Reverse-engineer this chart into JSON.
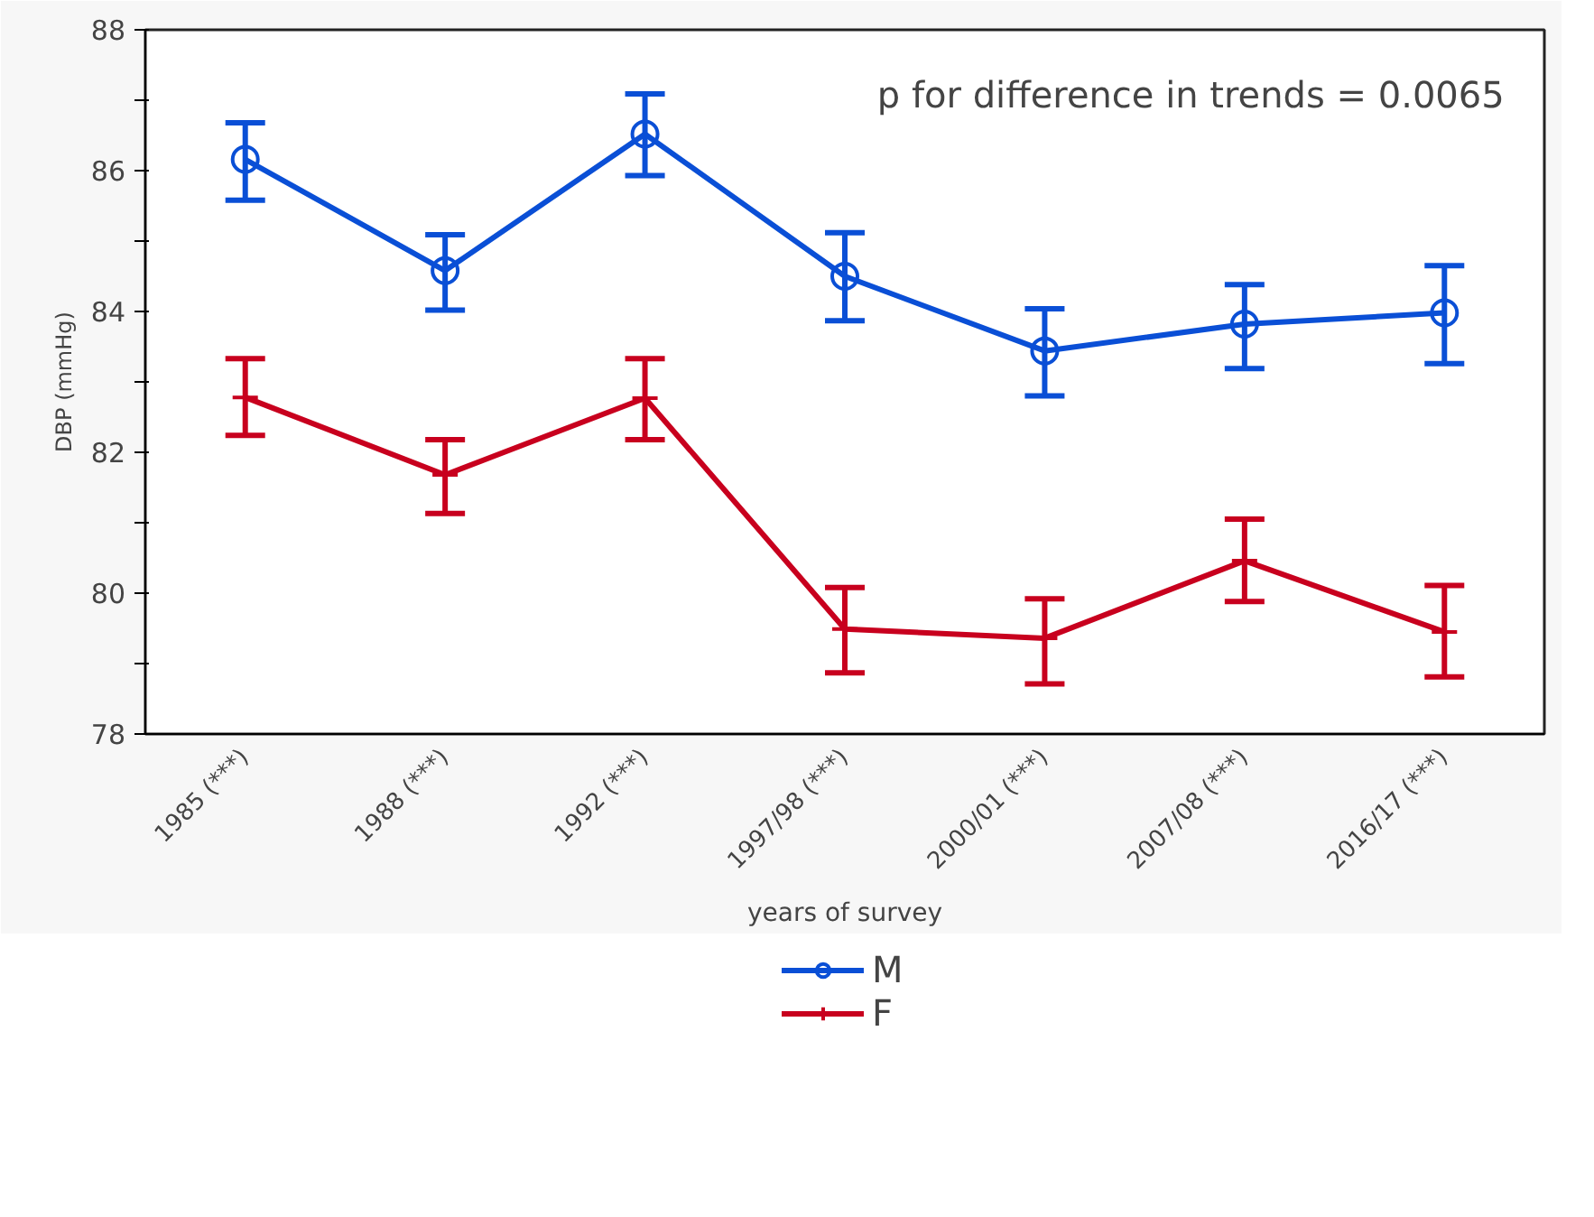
{
  "chart_data": {
    "type": "line",
    "xlabel": "years of survey",
    "ylabel": "DBP (mmHg)",
    "annotations": [
      "p for difference in trends = 0.0065"
    ],
    "categories": [
      "1985 (***)",
      "1988 (***)",
      "1992 (***)",
      "1997/98 (***)",
      "2000/01 (***)",
      "2007/08 (***)",
      "2016/17 (***)"
    ],
    "ylim": [
      78,
      88
    ],
    "yticks": [
      78,
      {
        "value": 79,
        "label": null
      },
      80,
      {
        "value": 81,
        "label": null
      },
      82,
      {
        "value": 83,
        "label": null
      },
      84,
      {
        "value": 85,
        "label": null
      },
      86,
      {
        "value": 87,
        "label": null
      },
      88
    ],
    "grid": false,
    "legend": "bottom",
    "line_style": "solid",
    "series": [
      {
        "name": "M",
        "color": "#0a4fd6",
        "marker": "circle",
        "values": [
          86.16,
          84.58,
          86.52,
          84.5,
          83.44,
          83.82,
          83.98
        ],
        "errors": [
          [
            85.58,
            86.68
          ],
          [
            84.02,
            85.09
          ],
          [
            85.93,
            87.09
          ],
          [
            83.87,
            85.12
          ],
          [
            82.8,
            84.04
          ],
          [
            83.19,
            84.38
          ],
          [
            83.26,
            84.65
          ]
        ]
      },
      {
        "name": "F",
        "color": "#c8001e",
        "marker": "cross",
        "values": [
          82.78,
          81.68,
          82.77,
          79.49,
          79.36,
          80.46,
          79.45
        ],
        "errors": [
          [
            82.24,
            83.33
          ],
          [
            81.13,
            82.18
          ],
          [
            82.18,
            83.33
          ],
          [
            78.87,
            80.08
          ],
          [
            78.71,
            79.92
          ],
          [
            79.88,
            81.05
          ],
          [
            78.81,
            80.11
          ]
        ]
      }
    ]
  }
}
